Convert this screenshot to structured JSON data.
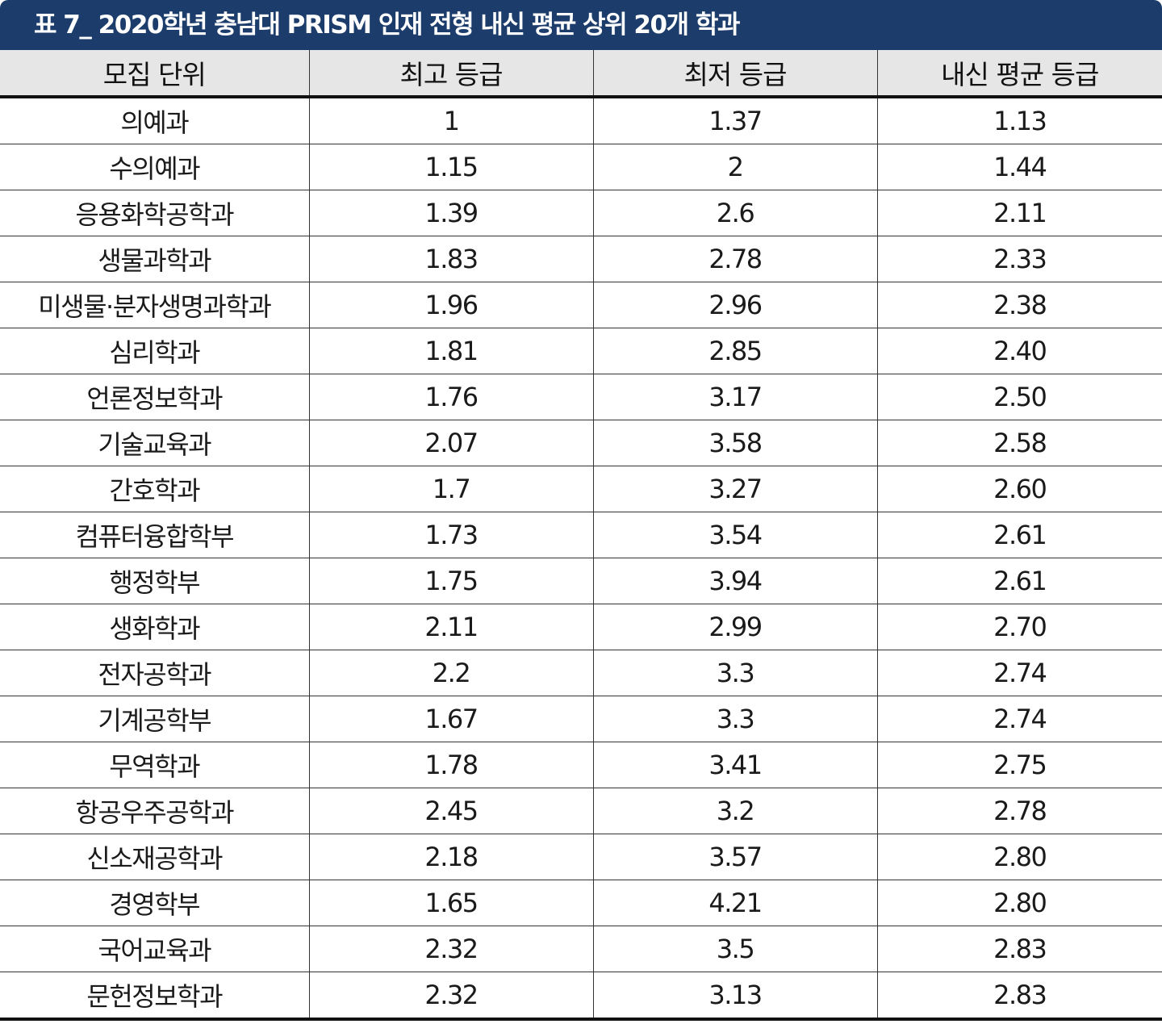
{
  "title": "표 7_ 2020학년 충남대 PRISM 인재 전형 내신 평균 상위 20개 학과",
  "columns": [
    "모집 단위",
    "최고 등급",
    "최저 등급",
    "내신 평균 등급"
  ],
  "rows": [
    [
      "의예과",
      "1",
      "1.37",
      "1.13"
    ],
    [
      "수의예과",
      "1.15",
      "2",
      "1.44"
    ],
    [
      "응용화학공학과",
      "1.39",
      "2.6",
      "2.11"
    ],
    [
      "생물과학과",
      "1.83",
      "2.78",
      "2.33"
    ],
    [
      "미생물·분자생명과학과",
      "1.96",
      "2.96",
      "2.38"
    ],
    [
      "심리학과",
      "1.81",
      "2.85",
      "2.40"
    ],
    [
      "언론정보학과",
      "1.76",
      "3.17",
      "2.50"
    ],
    [
      "기술교육과",
      "2.07",
      "3.58",
      "2.58"
    ],
    [
      "간호학과",
      "1.7",
      "3.27",
      "2.60"
    ],
    [
      "컴퓨터융합학부",
      "1.73",
      "3.54",
      "2.61"
    ],
    [
      "행정학부",
      "1.75",
      "3.94",
      "2.61"
    ],
    [
      "생화학과",
      "2.11",
      "2.99",
      "2.70"
    ],
    [
      "전자공학과",
      "2.2",
      "3.3",
      "2.74"
    ],
    [
      "기계공학부",
      "1.67",
      "3.3",
      "2.74"
    ],
    [
      "무역학과",
      "1.78",
      "3.41",
      "2.75"
    ],
    [
      "항공우주공학과",
      "2.45",
      "3.2",
      "2.78"
    ],
    [
      "신소재공학과",
      "2.18",
      "3.57",
      "2.80"
    ],
    [
      "경영학부",
      "1.65",
      "4.21",
      "2.80"
    ],
    [
      "국어교육과",
      "2.32",
      "3.5",
      "2.83"
    ],
    [
      "문헌정보학과",
      "2.32",
      "3.13",
      "2.83"
    ]
  ]
}
